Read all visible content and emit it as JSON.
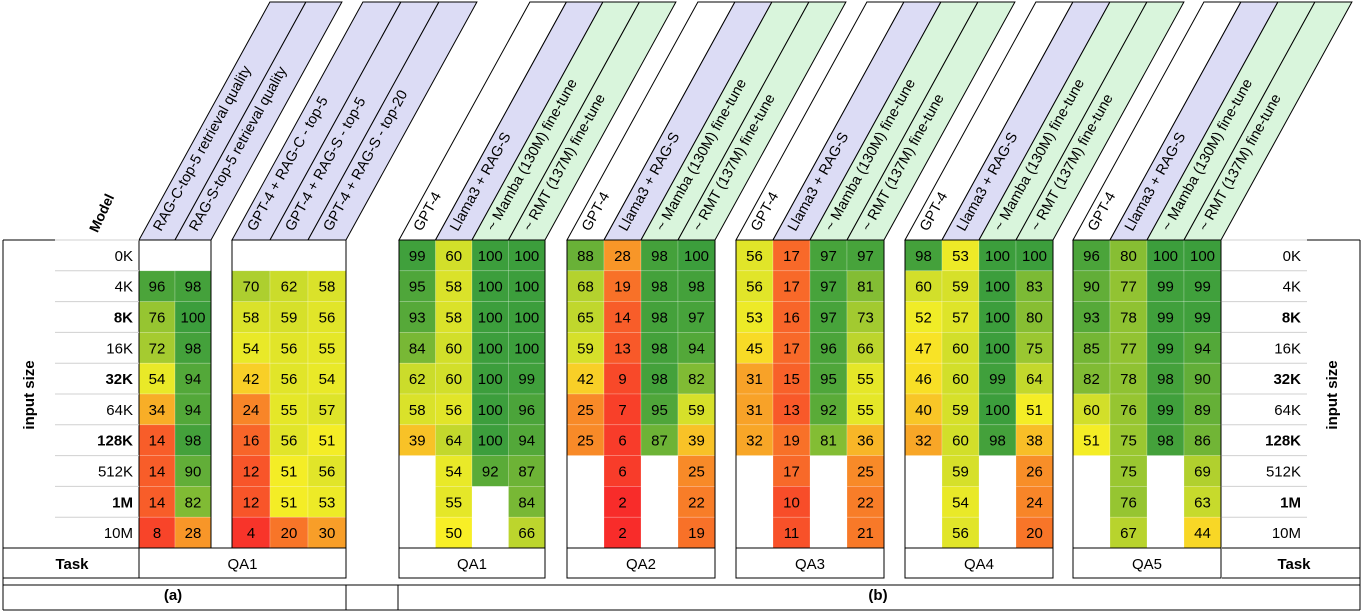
{
  "labels": {
    "model": "Model",
    "input_size": "input size",
    "task": "Task",
    "panel_a": "(a)",
    "panel_b": "(b)"
  },
  "row_labels": [
    {
      "text": "0K",
      "bold": false
    },
    {
      "text": "4K",
      "bold": false
    },
    {
      "text": "8K",
      "bold": true
    },
    {
      "text": "16K",
      "bold": false
    },
    {
      "text": "32K",
      "bold": true
    },
    {
      "text": "64K",
      "bold": false
    },
    {
      "text": "128K",
      "bold": true
    },
    {
      "text": "512K",
      "bold": false
    },
    {
      "text": "1M",
      "bold": true
    },
    {
      "text": "10M",
      "bold": false
    }
  ],
  "colors": {
    "header_blue": "#dcdcf5",
    "header_green": "#d9f5dc",
    "scale_low": "#f8242a",
    "scale_mid": "#f8ef26",
    "scale_high": "#3c9e3c"
  },
  "chart_data": {
    "type": "heatmap",
    "rows": [
      "0K",
      "4K",
      "8K",
      "16K",
      "32K",
      "64K",
      "128K",
      "512K",
      "1M",
      "10M"
    ],
    "groups": [
      {
        "panel": "(a)",
        "task": "QA1",
        "columns": [
          {
            "name": "RAG-C-top-5 retrieval quality",
            "header": "blue",
            "values": [
              null,
              96,
              76,
              72,
              54,
              34,
              14,
              14,
              14,
              8
            ]
          },
          {
            "name": "RAG-S-top-5 retrieval quality",
            "header": "blue",
            "values": [
              null,
              98,
              100,
              98,
              94,
              94,
              98,
              90,
              82,
              28
            ]
          }
        ]
      },
      {
        "panel": "(a)",
        "task": "",
        "columns": [
          {
            "name": "GPT-4 + RAG-C - top-5",
            "header": "blue",
            "values": [
              null,
              70,
              58,
              54,
              42,
              24,
              16,
              12,
              12,
              4
            ]
          },
          {
            "name": "GPT-4 + RAG-S - top-5",
            "header": "blue",
            "values": [
              null,
              62,
              59,
              56,
              56,
              55,
              56,
              51,
              51,
              20
            ]
          },
          {
            "name": "GPT-4 + RAG-S - top-20",
            "header": "blue",
            "values": [
              null,
              58,
              56,
              55,
              54,
              57,
              51,
              56,
              53,
              30
            ]
          }
        ]
      },
      {
        "panel": "(b)",
        "task": "QA1",
        "columns": [
          {
            "name": "GPT-4",
            "header": "white",
            "values": [
              99,
              95,
              93,
              84,
              62,
              58,
              39,
              null,
              null,
              null
            ]
          },
          {
            "name": "Llama3 + RAG-S",
            "header": "blue",
            "values": [
              60,
              58,
              58,
              60,
              60,
              56,
              64,
              54,
              55,
              50
            ]
          },
          {
            "name": "~ Mamba (130M) fine-tune",
            "header": "green",
            "values": [
              100,
              100,
              100,
              100,
              100,
              100,
              100,
              92,
              null,
              null
            ]
          },
          {
            "name": "~ RMT (137M) fine-tune",
            "header": "green",
            "values": [
              100,
              100,
              100,
              100,
              99,
              96,
              94,
              87,
              84,
              66
            ]
          }
        ]
      },
      {
        "panel": "(b)",
        "task": "QA2",
        "columns": [
          {
            "name": "GPT-4",
            "header": "white",
            "values": [
              88,
              68,
              65,
              59,
              42,
              25,
              25,
              null,
              null,
              null
            ]
          },
          {
            "name": "Llama3 + RAG-S",
            "header": "blue",
            "values": [
              28,
              19,
              14,
              13,
              9,
              7,
              6,
              6,
              2,
              2
            ]
          },
          {
            "name": "~ Mamba (130M) fine-tune",
            "header": "green",
            "values": [
              98,
              98,
              98,
              98,
              98,
              95,
              87,
              null,
              null,
              null
            ]
          },
          {
            "name": "~ RMT (137M) fine-tune",
            "header": "green",
            "values": [
              100,
              98,
              97,
              94,
              82,
              59,
              39,
              25,
              22,
              19
            ]
          }
        ]
      },
      {
        "panel": "(b)",
        "task": "QA3",
        "columns": [
          {
            "name": "GPT-4",
            "header": "white",
            "values": [
              56,
              56,
              53,
              45,
              31,
              31,
              32,
              null,
              null,
              null
            ]
          },
          {
            "name": "Llama3 + RAG-S",
            "header": "blue",
            "values": [
              17,
              17,
              16,
              17,
              15,
              13,
              19,
              17,
              10,
              11
            ]
          },
          {
            "name": "~ Mamba (130M) fine-tune",
            "header": "green",
            "values": [
              97,
              97,
              97,
              96,
              95,
              92,
              81,
              null,
              null,
              null
            ]
          },
          {
            "name": "~ RMT (137M) fine-tune",
            "header": "green",
            "values": [
              97,
              81,
              73,
              66,
              55,
              55,
              36,
              25,
              22,
              21
            ]
          }
        ]
      },
      {
        "panel": "(b)",
        "task": "QA4",
        "columns": [
          {
            "name": "GPT-4",
            "header": "white",
            "values": [
              98,
              60,
              52,
              47,
              46,
              40,
              32,
              null,
              null,
              null
            ]
          },
          {
            "name": "Llama3 + RAG-S",
            "header": "blue",
            "values": [
              53,
              59,
              57,
              60,
              60,
              59,
              60,
              59,
              54,
              56
            ]
          },
          {
            "name": "~ Mamba (130M) fine-tune",
            "header": "green",
            "values": [
              100,
              100,
              100,
              100,
              99,
              100,
              98,
              null,
              null,
              null
            ]
          },
          {
            "name": "~ RMT (137M) fine-tune",
            "header": "green",
            "values": [
              100,
              83,
              80,
              75,
              64,
              51,
              38,
              26,
              24,
              20
            ]
          }
        ]
      },
      {
        "panel": "(b)",
        "task": "QA5",
        "columns": [
          {
            "name": "GPT-4",
            "header": "white",
            "values": [
              96,
              90,
              93,
              85,
              82,
              60,
              51,
              null,
              null,
              null
            ]
          },
          {
            "name": "Llama3 + RAG-S",
            "header": "blue",
            "values": [
              80,
              77,
              78,
              77,
              78,
              76,
              75,
              75,
              76,
              67
            ]
          },
          {
            "name": "~ Mamba (130M) fine-tune",
            "header": "green",
            "values": [
              100,
              99,
              99,
              99,
              98,
              99,
              98,
              null,
              null,
              null
            ]
          },
          {
            "name": "~ RMT (137M) fine-tune",
            "header": "green",
            "values": [
              100,
              99,
              99,
              94,
              90,
              89,
              86,
              69,
              63,
              44
            ]
          }
        ]
      }
    ]
  }
}
